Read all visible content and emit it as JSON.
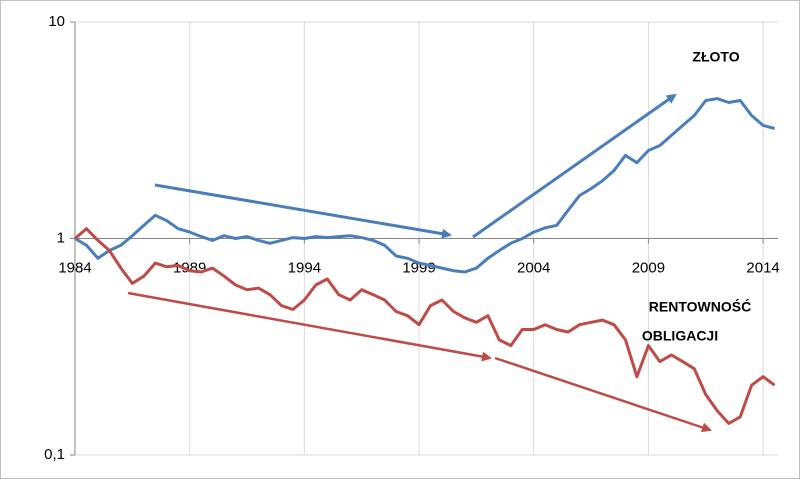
{
  "chart_data": {
    "type": "line",
    "log_scale_y": true,
    "grid": true,
    "xaxis_crosses_at": 1,
    "annotations": [
      "ZŁOTO",
      "RENTOWNOŚĆ",
      "OBLIGACJI"
    ],
    "x": [
      1984,
      1984.5,
      1985,
      1985.5,
      1986,
      1986.5,
      1987,
      1987.5,
      1988,
      1988.5,
      1989,
      1989.5,
      1990,
      1990.5,
      1991,
      1991.5,
      1992,
      1992.5,
      1993,
      1993.5,
      1994,
      1994.5,
      1995,
      1995.5,
      1996,
      1996.5,
      1997,
      1997.5,
      1998,
      1998.5,
      1999,
      1999.5,
      2000,
      2000.5,
      2001,
      2001.5,
      2002,
      2002.5,
      2003,
      2003.5,
      2004,
      2004.5,
      2005,
      2005.5,
      2006,
      2006.5,
      2007,
      2007.5,
      2008,
      2008.5,
      2009,
      2009.5,
      2010,
      2010.5,
      2011,
      2011.5,
      2012,
      2012.5,
      2013,
      2013.5,
      2014,
      2014.5
    ],
    "series": [
      {
        "name": "ZŁOTO",
        "color": "#4a7ebb",
        "values": [
          1.0,
          0.93,
          0.81,
          0.88,
          0.93,
          1.03,
          1.15,
          1.28,
          1.21,
          1.11,
          1.07,
          1.02,
          0.98,
          1.03,
          1.0,
          1.02,
          0.98,
          0.95,
          0.98,
          1.01,
          1.0,
          1.02,
          1.01,
          1.02,
          1.03,
          1.01,
          0.98,
          0.93,
          0.83,
          0.81,
          0.77,
          0.75,
          0.73,
          0.71,
          0.7,
          0.73,
          0.81,
          0.88,
          0.95,
          1.0,
          1.07,
          1.12,
          1.15,
          1.35,
          1.58,
          1.7,
          1.85,
          2.06,
          2.42,
          2.24,
          2.55,
          2.69,
          2.99,
          3.33,
          3.7,
          4.34,
          4.43,
          4.25,
          4.34,
          3.7,
          3.33,
          3.22
        ]
      },
      {
        "name": "RENTOWNOŚĆ OBLIGACJI",
        "color": "#be4b48",
        "values": [
          1.0,
          1.11,
          0.98,
          0.88,
          0.73,
          0.62,
          0.67,
          0.77,
          0.74,
          0.75,
          0.71,
          0.7,
          0.73,
          0.67,
          0.61,
          0.58,
          0.59,
          0.55,
          0.49,
          0.47,
          0.52,
          0.61,
          0.65,
          0.55,
          0.52,
          0.58,
          0.55,
          0.52,
          0.46,
          0.44,
          0.4,
          0.49,
          0.52,
          0.46,
          0.43,
          0.41,
          0.44,
          0.34,
          0.32,
          0.38,
          0.38,
          0.4,
          0.38,
          0.37,
          0.4,
          0.41,
          0.42,
          0.4,
          0.34,
          0.23,
          0.32,
          0.27,
          0.29,
          0.27,
          0.25,
          0.19,
          0.16,
          0.14,
          0.15,
          0.21,
          0.23,
          0.21
        ]
      }
    ],
    "xlim": [
      1984,
      2014.65
    ],
    "xticks": [
      1984,
      1989,
      1994,
      1999,
      2004,
      2009,
      2014
    ],
    "ylim": [
      0.1,
      10
    ],
    "yticks": [
      {
        "value": 0.1,
        "label": "0,1"
      },
      1,
      10
    ]
  }
}
